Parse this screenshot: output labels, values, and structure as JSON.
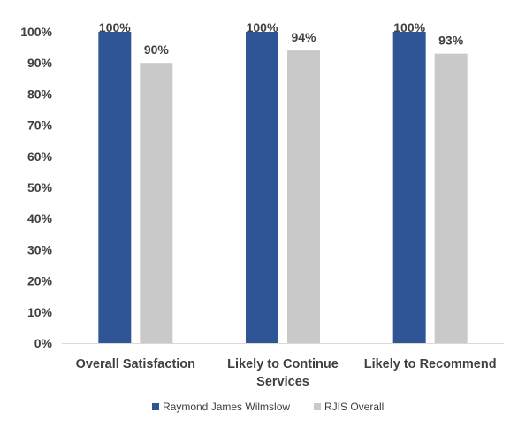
{
  "chart_data": {
    "type": "bar",
    "categories": [
      [
        "Overall Satisfaction"
      ],
      [
        "Likely to Continue",
        "Services"
      ],
      [
        "Likely to Recommend"
      ]
    ],
    "series": [
      {
        "name": "Raymond James Wilmslow",
        "color": "#2F5597",
        "values": [
          100,
          100,
          100
        ],
        "labels": [
          "100%",
          "100%",
          "100%"
        ]
      },
      {
        "name": "RJIS Overall",
        "color": "#C9C9C9",
        "values": [
          90,
          94,
          93
        ],
        "labels": [
          "90%",
          "94%",
          "93%"
        ]
      }
    ],
    "ylim": [
      0,
      100
    ],
    "yticks": [
      0,
      10,
      20,
      30,
      40,
      50,
      60,
      70,
      80,
      90,
      100
    ],
    "ytick_labels": [
      "0%",
      "10%",
      "20%",
      "30%",
      "40%",
      "50%",
      "60%",
      "70%",
      "80%",
      "90%",
      "100%"
    ],
    "grid": false,
    "legend": "bottom",
    "title": "",
    "xlabel": "",
    "ylabel": ""
  }
}
